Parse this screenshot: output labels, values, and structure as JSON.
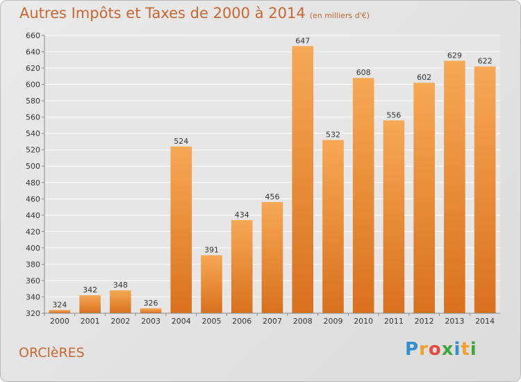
{
  "title": "Autres Impôts et Taxes de 2000 à 2014",
  "subtitle": "(en milliers d'€)",
  "commune": "ORClèRES",
  "logo": {
    "letters": [
      "P",
      "r",
      "o",
      "x",
      "i",
      "t",
      "i"
    ],
    "colors": [
      "#2f8fd1",
      "#f2a12a",
      "#e94c3f",
      "#3aa83a",
      "#2f8fd1",
      "#f2a12a",
      "#3aa83a"
    ]
  },
  "colors": {
    "bar_top": "#f7a855",
    "bar_bottom": "#d9711d",
    "text_accent": "#c8672f",
    "grid": "#ffffff"
  },
  "chart_data": {
    "type": "bar",
    "categories": [
      "2000",
      "2001",
      "2002",
      "2003",
      "2004",
      "2005",
      "2006",
      "2007",
      "2008",
      "2009",
      "2010",
      "2011",
      "2012",
      "2013",
      "2014"
    ],
    "values": [
      324,
      342,
      348,
      326,
      524,
      391,
      434,
      456,
      647,
      532,
      608,
      556,
      602,
      629,
      622
    ],
    "title": "Autres Impôts et Taxes de 2000 à 2014",
    "subtitle": "(en milliers d'€)",
    "ylim": [
      320,
      660
    ],
    "yticks": [
      320,
      340,
      360,
      380,
      400,
      420,
      440,
      460,
      480,
      500,
      520,
      540,
      560,
      580,
      600,
      620,
      640,
      660
    ],
    "grid": true,
    "legend": "none"
  }
}
